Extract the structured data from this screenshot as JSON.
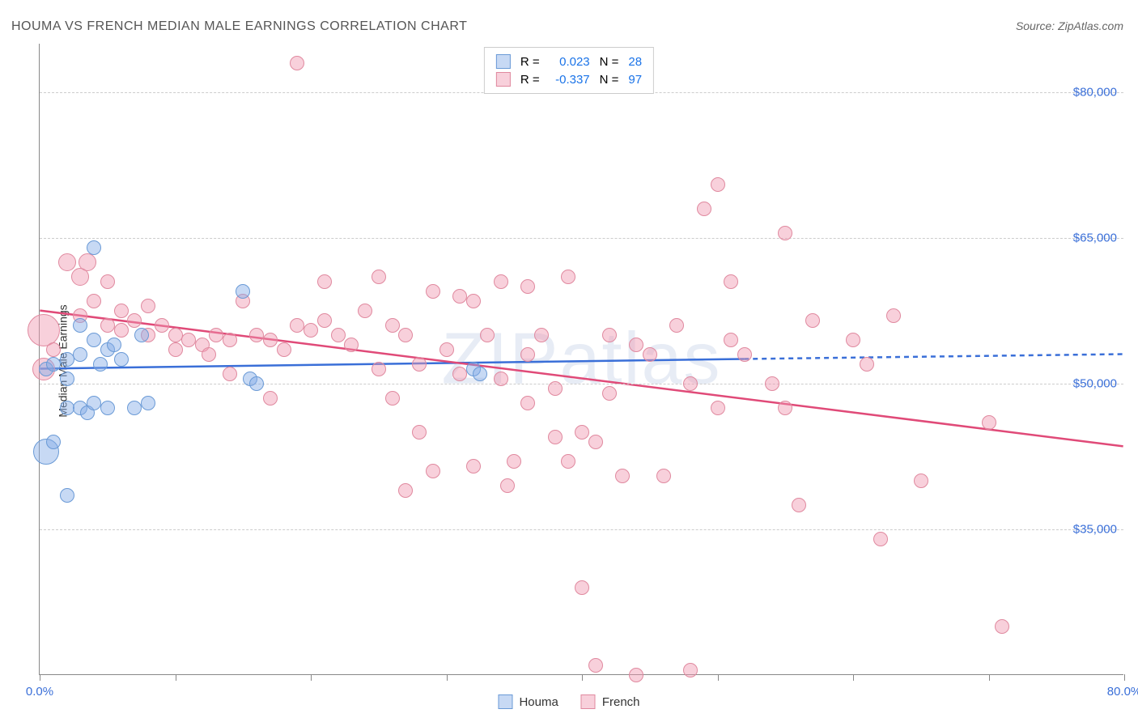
{
  "title": "HOUMA VS FRENCH MEDIAN MALE EARNINGS CORRELATION CHART",
  "source": "Source: ZipAtlas.com",
  "ylabel": "Median Male Earnings",
  "watermark": "ZIPatlas",
  "colors": {
    "houma_fill": "rgba(130,170,230,0.45)",
    "houma_stroke": "#6a9ad6",
    "french_fill": "rgba(240,150,175,0.45)",
    "french_stroke": "#e0899f",
    "trend_houma": "#3a6fd8",
    "trend_french": "#e04a78",
    "grid": "#cccccc",
    "axis": "#888888",
    "tick_label": "#3a6fd8",
    "value_blue": "#1a73e8",
    "text": "#333333"
  },
  "chart": {
    "type": "scatter",
    "xlim": [
      0,
      80
    ],
    "ylim": [
      20000,
      85000
    ],
    "x_ticks_major": [
      0,
      10,
      20,
      30,
      40,
      50,
      60,
      70,
      80
    ],
    "y_gridlines": [
      35000,
      50000,
      65000,
      80000
    ],
    "y_tick_labels": [
      "$35,000",
      "$50,000",
      "$65,000",
      "$80,000"
    ],
    "x_start_label": "0.0%",
    "x_end_label": "80.0%",
    "font_size_axis": 15,
    "font_size_title": 16,
    "background_color": "#ffffff"
  },
  "series": {
    "houma": {
      "label": "Houma",
      "R": "0.023",
      "N": "28",
      "trend": {
        "x1": 0,
        "y1": 51500,
        "x2": 52,
        "y2": 52500,
        "x2_dash": 80,
        "y2_dash": 53000
      },
      "points": [
        {
          "x": 0.5,
          "y": 43000,
          "r": 16
        },
        {
          "x": 1,
          "y": 44000,
          "r": 9
        },
        {
          "x": 4,
          "y": 64000,
          "r": 9
        },
        {
          "x": 0.5,
          "y": 51500,
          "r": 9
        },
        {
          "x": 1,
          "y": 52000,
          "r": 9
        },
        {
          "x": 2,
          "y": 50500,
          "r": 9
        },
        {
          "x": 2,
          "y": 52500,
          "r": 9
        },
        {
          "x": 2,
          "y": 47500,
          "r": 9
        },
        {
          "x": 3,
          "y": 47500,
          "r": 9
        },
        {
          "x": 3,
          "y": 53000,
          "r": 9
        },
        {
          "x": 3.5,
          "y": 47000,
          "r": 9
        },
        {
          "x": 4,
          "y": 48000,
          "r": 9
        },
        {
          "x": 4,
          "y": 54500,
          "r": 9
        },
        {
          "x": 5,
          "y": 53500,
          "r": 9
        },
        {
          "x": 5,
          "y": 47500,
          "r": 9
        },
        {
          "x": 5.5,
          "y": 54000,
          "r": 9
        },
        {
          "x": 6,
          "y": 52500,
          "r": 9
        },
        {
          "x": 7,
          "y": 47500,
          "r": 9
        },
        {
          "x": 2,
          "y": 38500,
          "r": 9
        },
        {
          "x": 15,
          "y": 59500,
          "r": 9
        },
        {
          "x": 15.5,
          "y": 50500,
          "r": 9
        },
        {
          "x": 16,
          "y": 50000,
          "r": 9
        },
        {
          "x": 32,
          "y": 51500,
          "r": 9
        },
        {
          "x": 32.5,
          "y": 51000,
          "r": 9
        },
        {
          "x": 3,
          "y": 56000,
          "r": 9
        },
        {
          "x": 7.5,
          "y": 55000,
          "r": 9
        },
        {
          "x": 8,
          "y": 48000,
          "r": 9
        },
        {
          "x": 4.5,
          "y": 52000,
          "r": 9
        }
      ]
    },
    "french": {
      "label": "French",
      "R": "-0.337",
      "N": "97",
      "trend": {
        "x1": 0,
        "y1": 57500,
        "x2": 80,
        "y2": 43500
      },
      "points": [
        {
          "x": 0.3,
          "y": 55500,
          "r": 20
        },
        {
          "x": 0.3,
          "y": 51500,
          "r": 14
        },
        {
          "x": 1,
          "y": 53500,
          "r": 9
        },
        {
          "x": 2,
          "y": 62500,
          "r": 11
        },
        {
          "x": 3,
          "y": 61000,
          "r": 11
        },
        {
          "x": 3,
          "y": 57000,
          "r": 9
        },
        {
          "x": 3.5,
          "y": 62500,
          "r": 11
        },
        {
          "x": 4,
          "y": 58500,
          "r": 9
        },
        {
          "x": 5,
          "y": 60500,
          "r": 9
        },
        {
          "x": 5,
          "y": 56000,
          "r": 9
        },
        {
          "x": 6,
          "y": 55500,
          "r": 9
        },
        {
          "x": 6,
          "y": 57500,
          "r": 9
        },
        {
          "x": 7,
          "y": 56500,
          "r": 9
        },
        {
          "x": 8,
          "y": 55000,
          "r": 9
        },
        {
          "x": 8,
          "y": 58000,
          "r": 9
        },
        {
          "x": 9,
          "y": 56000,
          "r": 9
        },
        {
          "x": 10,
          "y": 55000,
          "r": 9
        },
        {
          "x": 10,
          "y": 53500,
          "r": 9
        },
        {
          "x": 11,
          "y": 54500,
          "r": 9
        },
        {
          "x": 12,
          "y": 54000,
          "r": 9
        },
        {
          "x": 12.5,
          "y": 53000,
          "r": 9
        },
        {
          "x": 13,
          "y": 55000,
          "r": 9
        },
        {
          "x": 14,
          "y": 54500,
          "r": 9
        },
        {
          "x": 14,
          "y": 51000,
          "r": 9
        },
        {
          "x": 15,
          "y": 58500,
          "r": 9
        },
        {
          "x": 16,
          "y": 55000,
          "r": 9
        },
        {
          "x": 17,
          "y": 54500,
          "r": 9
        },
        {
          "x": 17,
          "y": 48500,
          "r": 9
        },
        {
          "x": 18,
          "y": 53500,
          "r": 9
        },
        {
          "x": 19,
          "y": 56000,
          "r": 9
        },
        {
          "x": 19,
          "y": 83000,
          "r": 9
        },
        {
          "x": 20,
          "y": 55500,
          "r": 9
        },
        {
          "x": 21,
          "y": 60500,
          "r": 9
        },
        {
          "x": 21,
          "y": 56500,
          "r": 9
        },
        {
          "x": 22,
          "y": 55000,
          "r": 9
        },
        {
          "x": 23,
          "y": 54000,
          "r": 9
        },
        {
          "x": 24,
          "y": 57500,
          "r": 9
        },
        {
          "x": 25,
          "y": 61000,
          "r": 9
        },
        {
          "x": 25,
          "y": 51500,
          "r": 9
        },
        {
          "x": 26,
          "y": 56000,
          "r": 9
        },
        {
          "x": 26,
          "y": 48500,
          "r": 9
        },
        {
          "x": 27,
          "y": 55000,
          "r": 9
        },
        {
          "x": 27,
          "y": 39000,
          "r": 9
        },
        {
          "x": 28,
          "y": 52000,
          "r": 9
        },
        {
          "x": 28,
          "y": 45000,
          "r": 9
        },
        {
          "x": 29,
          "y": 59500,
          "r": 9
        },
        {
          "x": 29,
          "y": 41000,
          "r": 9
        },
        {
          "x": 30,
          "y": 53500,
          "r": 9
        },
        {
          "x": 31,
          "y": 59000,
          "r": 9
        },
        {
          "x": 31,
          "y": 51000,
          "r": 9
        },
        {
          "x": 32,
          "y": 58500,
          "r": 9
        },
        {
          "x": 32,
          "y": 41500,
          "r": 9
        },
        {
          "x": 33,
          "y": 55000,
          "r": 9
        },
        {
          "x": 34,
          "y": 50500,
          "r": 9
        },
        {
          "x": 34,
          "y": 60500,
          "r": 9
        },
        {
          "x": 34.5,
          "y": 39500,
          "r": 9
        },
        {
          "x": 35,
          "y": 42000,
          "r": 9
        },
        {
          "x": 36,
          "y": 53000,
          "r": 9
        },
        {
          "x": 36,
          "y": 48000,
          "r": 9
        },
        {
          "x": 36,
          "y": 60000,
          "r": 9
        },
        {
          "x": 37,
          "y": 55000,
          "r": 9
        },
        {
          "x": 38,
          "y": 49500,
          "r": 9
        },
        {
          "x": 38,
          "y": 44500,
          "r": 9
        },
        {
          "x": 39,
          "y": 42000,
          "r": 9
        },
        {
          "x": 39,
          "y": 61000,
          "r": 9
        },
        {
          "x": 40,
          "y": 29000,
          "r": 9
        },
        {
          "x": 40,
          "y": 45000,
          "r": 9
        },
        {
          "x": 41,
          "y": 44000,
          "r": 9
        },
        {
          "x": 41,
          "y": 21000,
          "r": 9
        },
        {
          "x": 42,
          "y": 55000,
          "r": 9
        },
        {
          "x": 42,
          "y": 49000,
          "r": 9
        },
        {
          "x": 43,
          "y": 40500,
          "r": 9
        },
        {
          "x": 44,
          "y": 54000,
          "r": 9
        },
        {
          "x": 44,
          "y": 20000,
          "r": 9
        },
        {
          "x": 45,
          "y": 53000,
          "r": 9
        },
        {
          "x": 46,
          "y": 40500,
          "r": 9
        },
        {
          "x": 47,
          "y": 56000,
          "r": 9
        },
        {
          "x": 48,
          "y": 50000,
          "r": 9
        },
        {
          "x": 48,
          "y": 20500,
          "r": 9
        },
        {
          "x": 49,
          "y": 68000,
          "r": 9
        },
        {
          "x": 50,
          "y": 70500,
          "r": 9
        },
        {
          "x": 50,
          "y": 47500,
          "r": 9
        },
        {
          "x": 51,
          "y": 54500,
          "r": 9
        },
        {
          "x": 51,
          "y": 60500,
          "r": 9
        },
        {
          "x": 52,
          "y": 53000,
          "r": 9
        },
        {
          "x": 54,
          "y": 50000,
          "r": 9
        },
        {
          "x": 55,
          "y": 47500,
          "r": 9
        },
        {
          "x": 55,
          "y": 65500,
          "r": 9
        },
        {
          "x": 56,
          "y": 37500,
          "r": 9
        },
        {
          "x": 57,
          "y": 56500,
          "r": 9
        },
        {
          "x": 60,
          "y": 54500,
          "r": 9
        },
        {
          "x": 62,
          "y": 34000,
          "r": 9
        },
        {
          "x": 63,
          "y": 57000,
          "r": 9
        },
        {
          "x": 65,
          "y": 40000,
          "r": 9
        },
        {
          "x": 70,
          "y": 46000,
          "r": 9
        },
        {
          "x": 71,
          "y": 25000,
          "r": 9
        },
        {
          "x": 61,
          "y": 52000,
          "r": 9
        }
      ]
    }
  },
  "legend_top": {
    "R_label": "R =",
    "N_label": "N ="
  },
  "legend_bottom": {
    "bg": "#ffffff"
  }
}
